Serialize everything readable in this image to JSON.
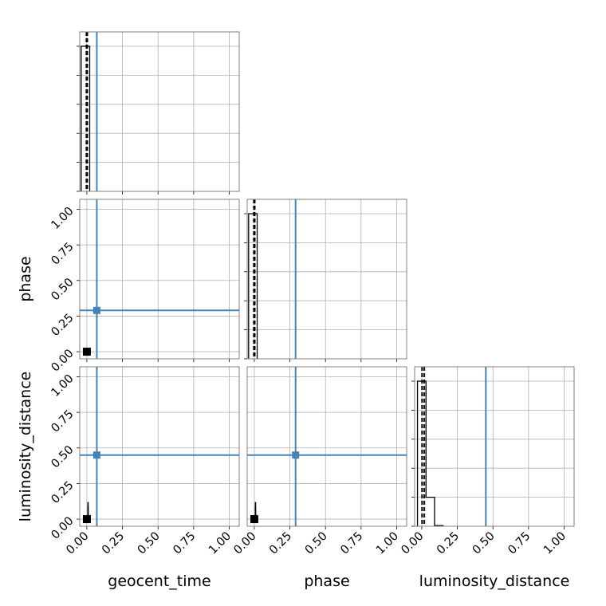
{
  "chart_data": {
    "type": "corner",
    "parameters": [
      "geocent_time",
      "phase",
      "luminosity_distance"
    ],
    "xlabels": [
      "geocent_time",
      "phase",
      "luminosity_distance"
    ],
    "ylabels": [
      "",
      "phase",
      "luminosity_distance"
    ],
    "axis_range": [
      -0.05,
      1.07
    ],
    "ticks": [
      0.0,
      0.25,
      0.5,
      0.75,
      1.0
    ],
    "tick_labels": [
      "0.00",
      "0.25",
      "0.50",
      "0.75",
      "1.00"
    ],
    "grid": true,
    "truth_color": "#4682b4",
    "sample_color": "#000000",
    "truths": {
      "geocent_time": 0.07,
      "phase": 0.29,
      "luminosity_distance": 0.45
    },
    "histograms": [
      {
        "parameter": "geocent_time",
        "bin_edges": [
          -0.04,
          0.02
        ],
        "heights": [
          1.0
        ],
        "quantiles": [
          -0.005,
          0.0,
          0.005
        ]
      },
      {
        "parameter": "phase",
        "bin_edges": [
          -0.04,
          0.02
        ],
        "heights": [
          1.0
        ],
        "quantiles": [
          -0.005,
          0.0,
          0.005
        ]
      },
      {
        "parameter": "luminosity_distance",
        "bin_edges": [
          -0.03,
          0.03,
          0.09,
          0.15
        ],
        "heights": [
          1.0,
          0.2,
          0.005
        ],
        "quantiles": [
          0.0,
          0.01,
          0.02
        ]
      }
    ],
    "scatter_2d": [
      {
        "x_param": "geocent_time",
        "y_param": "phase",
        "points": [
          [
            0.0,
            0.0
          ]
        ]
      },
      {
        "x_param": "geocent_time",
        "y_param": "luminosity_distance",
        "points": [
          [
            0.0,
            0.0
          ],
          [
            0.0,
            0.04
          ],
          [
            0.0,
            0.09
          ],
          [
            0.0,
            0.12
          ]
        ]
      },
      {
        "x_param": "phase",
        "y_param": "luminosity_distance",
        "points": [
          [
            0.0,
            0.0
          ],
          [
            0.0,
            0.04
          ],
          [
            0.0,
            0.09
          ],
          [
            0.0,
            0.12
          ]
        ]
      }
    ],
    "hist_yticks": [
      0.0,
      0.2,
      0.4,
      0.6,
      0.8,
      1.0
    ]
  }
}
